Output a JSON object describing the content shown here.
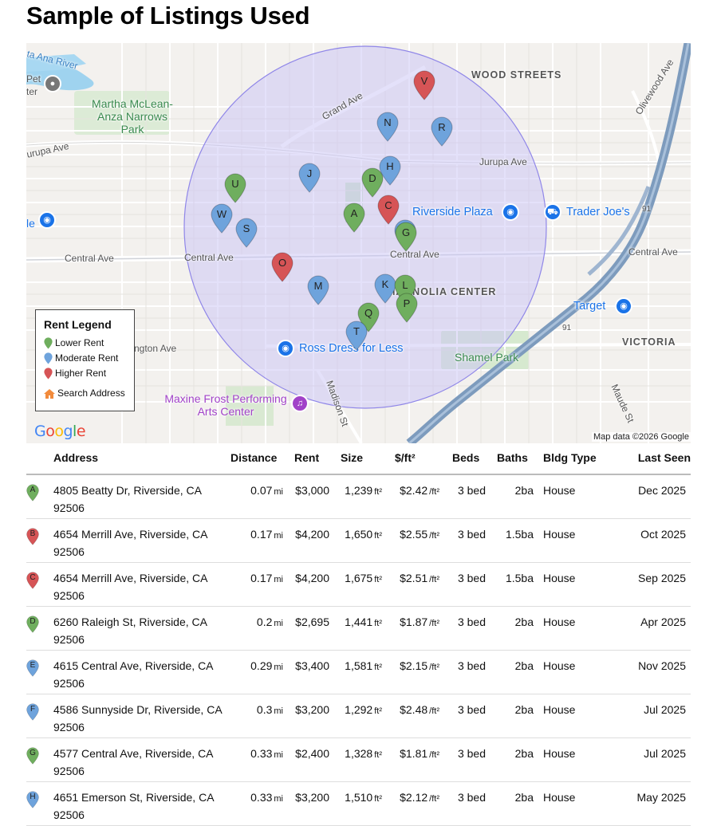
{
  "title": "Sample of Listings Used",
  "colors": {
    "lower": "#6fae5e",
    "moderate": "#6ea3dc",
    "higher": "#d65456",
    "radius_fill": "#c9c3f5",
    "radius_stroke": "#8f86e8",
    "home": "#f28b3c",
    "poi_blue": "#1a73e8"
  },
  "map": {
    "pois": [
      {
        "label": "Riverside Plaza",
        "icon": "shopping-bag-icon"
      },
      {
        "label": "Trader Joe's",
        "icon": "cart-icon"
      },
      {
        "label": "Target",
        "icon": "shopping-bag-icon"
      },
      {
        "label": "Ross Dress for Less",
        "icon": "shopping-bag-icon"
      }
    ],
    "labels": {
      "wood_streets": "WOOD STREETS",
      "grand_ave": "Grand Ave",
      "jurupa_ave_left": "Jurupa Ave",
      "jurupa_ave": "Jurupa Ave",
      "central_ave_1": "Central Ave",
      "central_ave_2": "Central Ave",
      "central_ave_3": "Central Ave",
      "central_ave_4": "Central Ave",
      "olivewood_ave": "Olivewood Ave",
      "madison_st": "Madison St",
      "maude_st": "Maude St",
      "magnolia_center": "MAGNOLIA CENTER",
      "victoria": "VICTORIA",
      "ana_river": "ta Ana River",
      "pet": "Pet",
      "ter": "ter",
      "arlington": "ngton Ave",
      "le": "le",
      "hwy_91a": "91",
      "hwy_91b": "91",
      "e_edge": "e"
    },
    "parks": {
      "martha": "Martha McLean-Anza Narrows Park",
      "shamel": "Shamel Park",
      "maxine": "Maxine Frost Performing Arts Center"
    },
    "pins": [
      {
        "letter": "V",
        "tier": "higher"
      },
      {
        "letter": "N",
        "tier": "moderate"
      },
      {
        "letter": "R",
        "tier": "moderate"
      },
      {
        "letter": "H",
        "tier": "moderate"
      },
      {
        "letter": "J",
        "tier": "moderate"
      },
      {
        "letter": "D",
        "tier": "lower"
      },
      {
        "letter": "U",
        "tier": "lower"
      },
      {
        "letter": "C",
        "tier": "higher"
      },
      {
        "letter": "A",
        "tier": "lower"
      },
      {
        "letter": "W",
        "tier": "moderate"
      },
      {
        "letter": "S",
        "tier": "moderate"
      },
      {
        "letter": "E",
        "tier": "moderate"
      },
      {
        "letter": "G",
        "tier": "lower"
      },
      {
        "letter": "O",
        "tier": "higher"
      },
      {
        "letter": "M",
        "tier": "moderate"
      },
      {
        "letter": "K",
        "tier": "moderate"
      },
      {
        "letter": "L",
        "tier": "lower"
      },
      {
        "letter": "P",
        "tier": "lower"
      },
      {
        "letter": "Q",
        "tier": "lower"
      },
      {
        "letter": "T",
        "tier": "moderate"
      }
    ],
    "legend": {
      "title": "Rent Legend",
      "lower": "Lower Rent",
      "moderate": "Moderate Rent",
      "higher": "Higher Rent",
      "search": "Search Address"
    },
    "google": "Google",
    "attribution": "Map data ©2026 Google"
  },
  "table": {
    "headers": {
      "address": "Address",
      "distance": "Distance",
      "rent": "Rent",
      "size": "Size",
      "ppsf": "$/ft²",
      "beds": "Beds",
      "baths": "Baths",
      "bldg": "Bldg Type",
      "seen": "Last Seen"
    },
    "rows": [
      {
        "letter": "A",
        "tier": "lower",
        "address": "4805 Beatty Dr, Riverside, CA 92506",
        "distance": "0.07",
        "rent": "$3,000",
        "size": "1,239",
        "ppsf": "$2.42",
        "beds": "3 bed",
        "baths": "2ba",
        "bldg": "House",
        "seen": "Dec 2025"
      },
      {
        "letter": "B",
        "tier": "higher",
        "address": "4654 Merrill Ave, Riverside, CA 92506",
        "distance": "0.17",
        "rent": "$4,200",
        "size": "1,650",
        "ppsf": "$2.55",
        "beds": "3 bed",
        "baths": "1.5ba",
        "bldg": "House",
        "seen": "Oct 2025"
      },
      {
        "letter": "C",
        "tier": "higher",
        "address": "4654 Merrill Ave, Riverside, CA 92506",
        "distance": "0.17",
        "rent": "$4,200",
        "size": "1,675",
        "ppsf": "$2.51",
        "beds": "3 bed",
        "baths": "1.5ba",
        "bldg": "House",
        "seen": "Sep 2025"
      },
      {
        "letter": "D",
        "tier": "lower",
        "address": "6260 Raleigh St, Riverside, CA 92506",
        "distance": "0.2",
        "rent": "$2,695",
        "size": "1,441",
        "ppsf": "$1.87",
        "beds": "3 bed",
        "baths": "2ba",
        "bldg": "House",
        "seen": "Apr 2025"
      },
      {
        "letter": "E",
        "tier": "moderate",
        "address": "4615 Central Ave, Riverside, CA 92506",
        "distance": "0.29",
        "rent": "$3,400",
        "size": "1,581",
        "ppsf": "$2.15",
        "beds": "3 bed",
        "baths": "2ba",
        "bldg": "House",
        "seen": "Nov 2025"
      },
      {
        "letter": "F",
        "tier": "moderate",
        "address": "4586 Sunnyside Dr, Riverside, CA 92506",
        "distance": "0.3",
        "rent": "$3,200",
        "size": "1,292",
        "ppsf": "$2.48",
        "beds": "3 bed",
        "baths": "2ba",
        "bldg": "House",
        "seen": "Jul 2025"
      },
      {
        "letter": "G",
        "tier": "lower",
        "address": "4577 Central Ave, Riverside, CA 92506",
        "distance": "0.33",
        "rent": "$2,400",
        "size": "1,328",
        "ppsf": "$1.81",
        "beds": "3 bed",
        "baths": "2ba",
        "bldg": "House",
        "seen": "Jul 2025"
      },
      {
        "letter": "H",
        "tier": "moderate",
        "address": "4651 Emerson St, Riverside, CA 92506",
        "distance": "0.33",
        "rent": "$3,200",
        "size": "1,510",
        "ppsf": "$2.12",
        "beds": "3 bed",
        "baths": "2ba",
        "bldg": "House",
        "seen": "May 2025"
      }
    ],
    "units": {
      "mi": "mi",
      "ft2": "ft²",
      "per_ft2": "/ft²"
    }
  }
}
